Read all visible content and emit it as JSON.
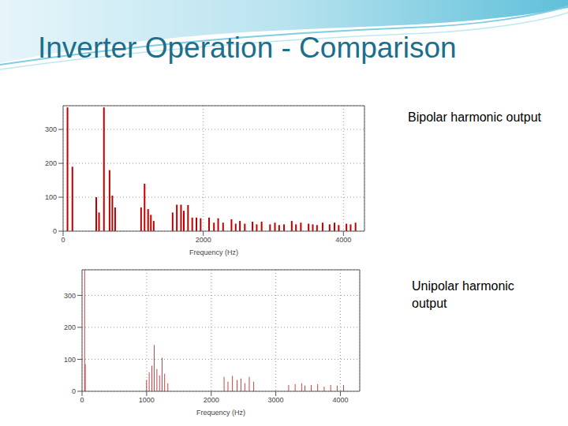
{
  "title": "Inverter Operation - Comparison",
  "chart_data": [
    {
      "type": "bar",
      "title": "Bipolar harmonic output",
      "x_label": "Frequency (Hz)",
      "x": [
        60,
        130,
        470,
        510,
        580,
        660,
        700,
        740,
        1110,
        1160,
        1210,
        1250,
        1290,
        1560,
        1620,
        1680,
        1720,
        1780,
        1840,
        1900,
        1960,
        2080,
        2150,
        2210,
        2280,
        2400,
        2460,
        2520,
        2590,
        2700,
        2760,
        2830,
        2950,
        3020,
        3080,
        3150,
        3260,
        3320,
        3390,
        3500,
        3560,
        3620,
        3700,
        3800,
        3870,
        3930,
        4040,
        4100,
        4170
      ],
      "values": [
        365,
        190,
        100,
        55,
        365,
        180,
        105,
        70,
        70,
        140,
        65,
        48,
        30,
        55,
        78,
        78,
        60,
        77,
        40,
        40,
        38,
        40,
        25,
        38,
        25,
        35,
        22,
        30,
        22,
        28,
        20,
        28,
        20,
        25,
        18,
        20,
        30,
        20,
        25,
        22,
        20,
        18,
        25,
        20,
        25,
        18,
        22,
        20,
        25
      ],
      "color": "#c00000",
      "xlim": [
        0,
        4300
      ],
      "xticks": [
        0,
        2000,
        4000
      ],
      "ylim": [
        0,
        370
      ],
      "yticks": [
        0,
        100,
        200,
        300
      ],
      "grid": true
    },
    {
      "type": "bar",
      "title": "Unipolar harmonic output",
      "x_label": "Frequency (Hz)",
      "x": [
        40,
        50,
        1000,
        1040,
        1080,
        1120,
        1160,
        1200,
        1240,
        1280,
        1330,
        2200,
        2260,
        2330,
        2400,
        2460,
        2520,
        2590,
        2660,
        3200,
        3300,
        3400,
        3450,
        3550,
        3650,
        3750,
        3850,
        3950,
        4050
      ],
      "values": [
        380,
        85,
        35,
        60,
        80,
        145,
        70,
        50,
        105,
        55,
        25,
        45,
        30,
        48,
        35,
        40,
        25,
        45,
        30,
        20,
        22,
        25,
        18,
        20,
        22,
        15,
        20,
        18,
        20
      ],
      "color": "#c00000",
      "xlim": [
        0,
        4300
      ],
      "xticks": [
        0,
        1000,
        2000,
        3000,
        4000
      ],
      "ylim": [
        0,
        380
      ],
      "yticks": [
        0,
        100,
        200,
        300
      ],
      "grid": true
    }
  ]
}
